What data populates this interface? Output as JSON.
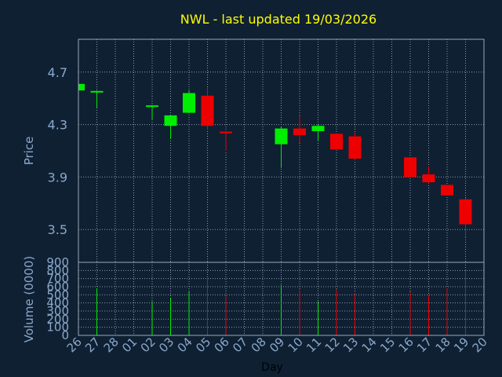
{
  "chart_data": {
    "type": "candlestick",
    "title": "NWL - last updated 19/03/2026",
    "xlabel": "Day",
    "price_panel": {
      "ylabel": "Price",
      "ylim": [
        3.25,
        4.95
      ],
      "yticks": [
        3.5,
        3.9,
        4.3,
        4.7
      ],
      "ytick_labels": [
        "3.5",
        "3.9",
        "4.3",
        "4.7"
      ],
      "grid": true
    },
    "volume_panel": {
      "ylabel": "Volume (0000)",
      "ylim": [
        0,
        900
      ],
      "yticks": [
        0,
        100,
        200,
        300,
        400,
        500,
        600,
        700,
        800,
        900
      ],
      "ytick_labels": [
        "0",
        "100",
        "200",
        "300",
        "400",
        "500",
        "600",
        "700",
        "800",
        "900"
      ],
      "grid": true
    },
    "x_tick_labels": [
      "26",
      "27",
      "28",
      "01",
      "02",
      "03",
      "04",
      "05",
      "06",
      "07",
      "08",
      "09",
      "10",
      "11",
      "12",
      "13",
      "14",
      "15",
      "16",
      "17",
      "18",
      "19",
      "20"
    ],
    "candles": [
      {
        "day": "26",
        "open": 4.56,
        "high": 4.62,
        "low": 4.56,
        "close": 4.61,
        "volume": 0
      },
      {
        "day": "27",
        "open": 4.54,
        "high": 4.56,
        "low": 4.43,
        "close": 4.55,
        "volume": 580
      },
      {
        "day": "02",
        "open": 4.43,
        "high": 4.45,
        "low": 4.34,
        "close": 4.44,
        "volume": 420
      },
      {
        "day": "03",
        "open": 4.29,
        "high": 4.37,
        "low": 4.19,
        "close": 4.37,
        "volume": 460
      },
      {
        "day": "04",
        "open": 4.39,
        "high": 4.56,
        "low": 4.39,
        "close": 4.54,
        "volume": 540
      },
      {
        "day": "05",
        "open": 4.52,
        "high": 4.58,
        "low": 4.26,
        "close": 4.29,
        "volume": 700
      },
      {
        "day": "06",
        "open": 4.24,
        "high": 4.25,
        "low": 4.1,
        "close": 4.23,
        "volume": 480
      },
      {
        "day": "09",
        "open": 4.15,
        "high": 4.28,
        "low": 3.97,
        "close": 4.27,
        "volume": 620
      },
      {
        "day": "10",
        "open": 4.27,
        "high": 4.37,
        "low": 4.16,
        "close": 4.22,
        "volume": 560
      },
      {
        "day": "11",
        "open": 4.25,
        "high": 4.3,
        "low": 4.18,
        "close": 4.29,
        "volume": 420
      },
      {
        "day": "12",
        "open": 4.23,
        "high": 4.23,
        "low": 4.11,
        "close": 4.11,
        "volume": 570
      },
      {
        "day": "13",
        "open": 4.21,
        "high": 4.24,
        "low": 4.03,
        "close": 4.04,
        "volume": 520
      },
      {
        "day": "16",
        "open": 4.05,
        "high": 4.05,
        "low": 3.9,
        "close": 3.9,
        "volume": 540
      },
      {
        "day": "17",
        "open": 3.92,
        "high": 3.98,
        "low": 3.85,
        "close": 3.86,
        "volume": 500
      },
      {
        "day": "18",
        "open": 3.84,
        "high": 3.84,
        "low": 3.76,
        "close": 3.76,
        "volume": 580
      },
      {
        "day": "19",
        "open": 3.73,
        "high": 3.74,
        "low": 3.44,
        "close": 3.54,
        "volume": 810
      }
    ]
  },
  "colors": {
    "background": "#0f2033",
    "grid": "#8a9aaa",
    "frame": "#9aa8b8",
    "title": "#ffff00",
    "axis_text": "#8aa8c8",
    "up": "#00ee00",
    "down": "#ee0000"
  }
}
